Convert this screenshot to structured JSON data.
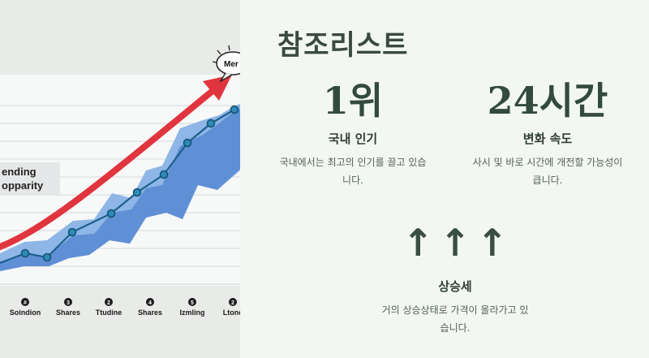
{
  "chart": {
    "legend_text_line1": "ending",
    "legend_text_line2": "opparity",
    "bubble_text": "Mer",
    "categories": [
      {
        "num": "#",
        "label": "Soindion"
      },
      {
        "num": "3",
        "label": "Shares"
      },
      {
        "num": "2",
        "label": "Ttudine"
      },
      {
        "num": "4",
        "label": "Shares"
      },
      {
        "num": "5",
        "label": "Izmling"
      },
      {
        "num": "2",
        "label": "Ltonc"
      }
    ]
  },
  "panel": {
    "title": "참조리스트",
    "stats": [
      {
        "value": "1위",
        "label": "국내 인기",
        "desc_line1": "국내에서는 최고의 인기를 끌고 있습",
        "desc_line2": "니다."
      },
      {
        "value": "24시간",
        "label": "변화 속도",
        "desc_line1": "사시 및 바로 시간에 개전할 가능성이",
        "desc_line2": "큽니다."
      }
    ],
    "trend": {
      "arrows": [
        "↑",
        "↑",
        "↑"
      ],
      "label": "상승세",
      "desc_line1": "거의 상승상태로 가격이 올라가고 있",
      "desc_line2": "습니다."
    }
  },
  "colors": {
    "accent_red": "#e0353f",
    "area_blue": "#5f8fd4",
    "line_blue": "#1c5f8e",
    "text_dark": "#334a3e"
  }
}
